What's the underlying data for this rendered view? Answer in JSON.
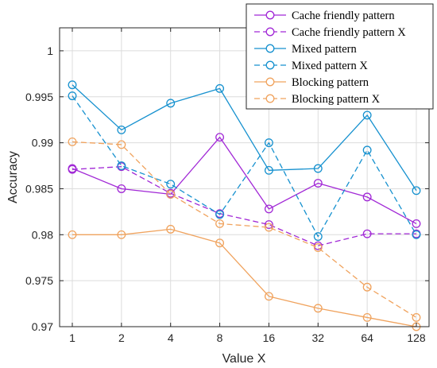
{
  "chart_data": {
    "type": "line",
    "title": "",
    "xlabel": "Value X",
    "ylabel": "Accuracy",
    "categories": [
      "1",
      "2",
      "4",
      "8",
      "16",
      "32",
      "64",
      "128"
    ],
    "ylim": [
      0.97,
      1.0025
    ],
    "yticks": [
      0.97,
      0.975,
      0.98,
      0.985,
      0.99,
      0.995,
      1
    ],
    "ytick_labels": [
      "0.97",
      "0.975",
      "0.98",
      "0.985",
      "0.99",
      "0.995",
      "1"
    ],
    "grid": true,
    "legend_position": "top-right",
    "series": [
      {
        "name": "Cache friendly pattern",
        "color": "#a128d6",
        "dash": "solid",
        "values": [
          0.9872,
          0.985,
          0.9844,
          0.9906,
          0.9828,
          0.9856,
          0.9841,
          0.9812
        ]
      },
      {
        "name": "Cache friendly pattern X",
        "color": "#a128d6",
        "dash": "dashed",
        "values": [
          0.9871,
          0.9874,
          0.9845,
          0.9823,
          0.9811,
          0.9788,
          0.9801,
          0.9801
        ]
      },
      {
        "name": "Mixed pattern",
        "color": "#1691cf",
        "dash": "solid",
        "values": [
          0.9963,
          0.9914,
          0.9943,
          0.9959,
          0.987,
          0.9872,
          0.993,
          0.9848
        ]
      },
      {
        "name": "Mixed pattern X",
        "color": "#1691cf",
        "dash": "dashed",
        "values": [
          0.9951,
          0.9875,
          0.9855,
          0.9822,
          0.99,
          0.9798,
          0.9892,
          0.98
        ]
      },
      {
        "name": "Blocking pattern",
        "color": "#f0a35e",
        "dash": "solid",
        "values": [
          0.98,
          0.98,
          0.9806,
          0.9791,
          0.9733,
          0.972,
          0.971,
          0.97
        ]
      },
      {
        "name": "Blocking pattern X",
        "color": "#f0a35e",
        "dash": "dashed",
        "values": [
          0.9901,
          0.9898,
          0.9844,
          0.9812,
          0.9808,
          0.9786,
          0.9743,
          0.971
        ]
      }
    ]
  }
}
